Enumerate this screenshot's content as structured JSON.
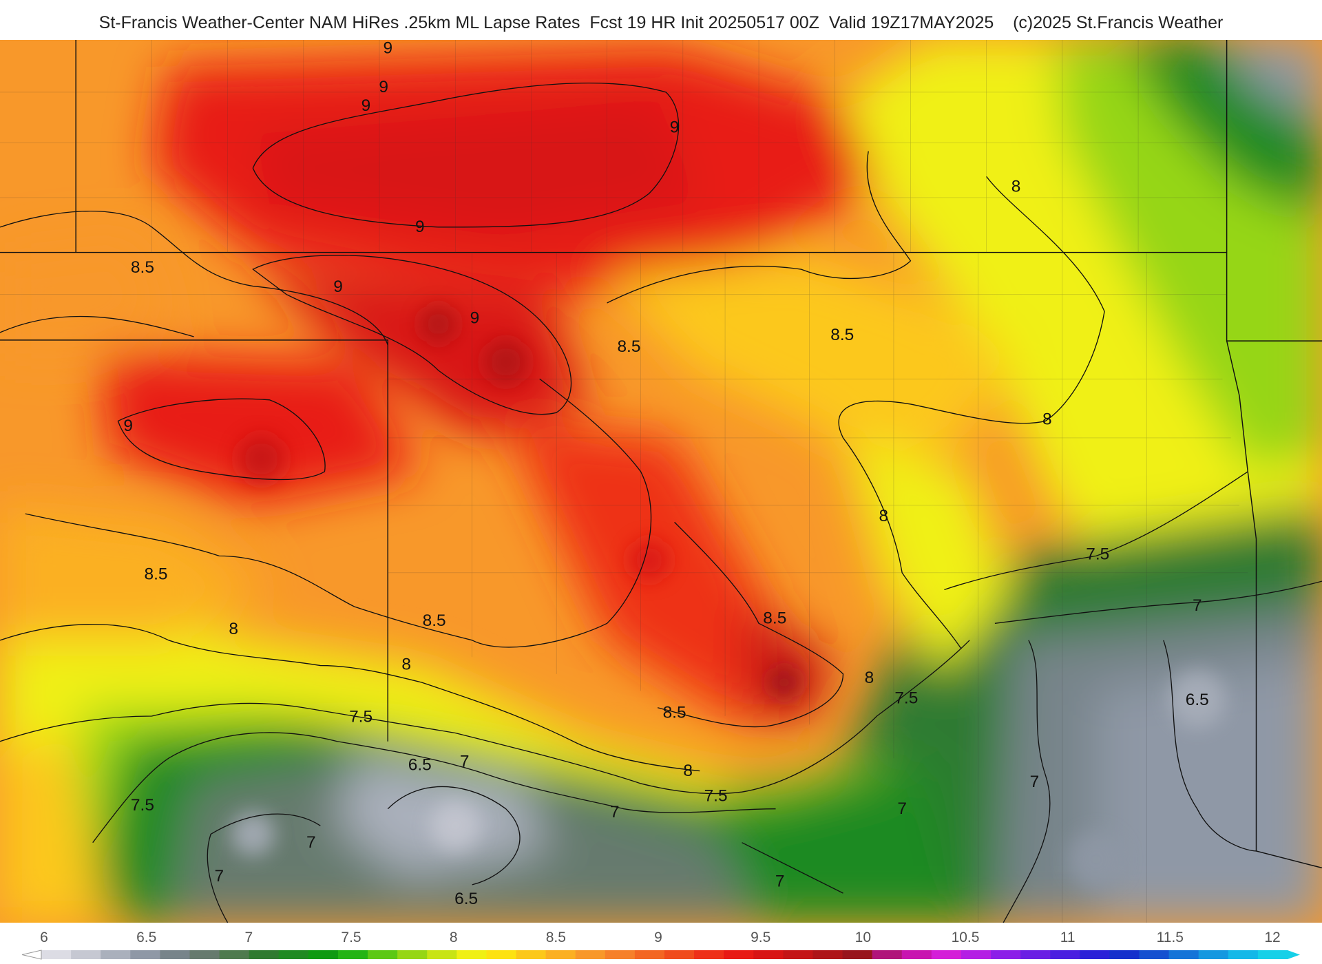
{
  "title": "St-Francis Weather-Center NAM HiRes .25km ML Lapse Rates  Fcst 19 HR Init 20250517 00Z  Valid 19Z17MAY2025    (c)2025 St.Francis Weather",
  "colorbar": {
    "ticks": [
      "6",
      "6.5",
      "7",
      "7.5",
      "8",
      "8.5",
      "9",
      "9.5",
      "10",
      "10.5",
      "11",
      "11.5",
      "12"
    ],
    "colors": [
      "#dcdce4",
      "#c6c8d2",
      "#aab0bc",
      "#8f98a6",
      "#77848a",
      "#667a6e",
      "#4e7a4e",
      "#2f7a30",
      "#1f8a22",
      "#0f9a12",
      "#24b414",
      "#5cc814",
      "#96d614",
      "#c8e414",
      "#f0f014",
      "#fde212",
      "#fcc81a",
      "#fbb022",
      "#f8982a",
      "#f6802a",
      "#f36622",
      "#f04c1c",
      "#ee3018",
      "#e81a14",
      "#d81414",
      "#c41416",
      "#ae1418",
      "#98141c",
      "#b0147a",
      "#c814b0",
      "#d41ed8",
      "#b41ee4",
      "#8c1ee8",
      "#6a1ee4",
      "#4a1ee0",
      "#2a20d8",
      "#1430cc",
      "#1450d0",
      "#1474d8",
      "#1498e0",
      "#14b8e8",
      "#16d0e8"
    ]
  },
  "contour_labels": [
    {
      "text": "9",
      "lx": 460,
      "ly": 58
    },
    {
      "text": "9",
      "lx": 455,
      "ly": 104
    },
    {
      "text": "9",
      "lx": 434,
      "ly": 126
    },
    {
      "text": "9",
      "lx": 800,
      "ly": 152
    },
    {
      "text": "9",
      "lx": 498,
      "ly": 270
    },
    {
      "text": "9",
      "lx": 401,
      "ly": 341
    },
    {
      "text": "9",
      "lx": 563,
      "ly": 378
    },
    {
      "text": "9",
      "lx": 152,
      "ly": 506
    },
    {
      "text": "8.5",
      "lx": 169,
      "ly": 318
    },
    {
      "text": "8.5",
      "lx": 746,
      "ly": 412
    },
    {
      "text": "8.5",
      "lx": 999,
      "ly": 398
    },
    {
      "text": "8.5",
      "lx": 185,
      "ly": 682
    },
    {
      "text": "8.5",
      "lx": 515,
      "ly": 737
    },
    {
      "text": "8.5",
      "lx": 919,
      "ly": 734
    },
    {
      "text": "8.5",
      "lx": 800,
      "ly": 846
    },
    {
      "text": "8",
      "lx": 1205,
      "ly": 222
    },
    {
      "text": "8",
      "lx": 1242,
      "ly": 498
    },
    {
      "text": "8",
      "lx": 1048,
      "ly": 613
    },
    {
      "text": "8",
      "lx": 277,
      "ly": 747
    },
    {
      "text": "8",
      "lx": 482,
      "ly": 789
    },
    {
      "text": "8",
      "lx": 1031,
      "ly": 805
    },
    {
      "text": "8",
      "lx": 816,
      "ly": 915
    },
    {
      "text": "7.5",
      "lx": 1302,
      "ly": 658
    },
    {
      "text": "7.5",
      "lx": 428,
      "ly": 851
    },
    {
      "text": "7.5",
      "lx": 1075,
      "ly": 829
    },
    {
      "text": "7.5",
      "lx": 849,
      "ly": 945
    },
    {
      "text": "7.5",
      "lx": 169,
      "ly": 956
    },
    {
      "text": "7",
      "lx": 1420,
      "ly": 719
    },
    {
      "text": "7",
      "lx": 551,
      "ly": 904
    },
    {
      "text": "7",
      "lx": 729,
      "ly": 964
    },
    {
      "text": "7",
      "lx": 369,
      "ly": 1000
    },
    {
      "text": "7",
      "lx": 260,
      "ly": 1040
    },
    {
      "text": "7",
      "lx": 1227,
      "ly": 928
    },
    {
      "text": "7",
      "lx": 1070,
      "ly": 960
    },
    {
      "text": "7",
      "lx": 925,
      "ly": 1046
    },
    {
      "text": "6.5",
      "lx": 1420,
      "ly": 831
    },
    {
      "text": "6.5",
      "lx": 498,
      "ly": 908
    },
    {
      "text": "6.5",
      "lx": 553,
      "ly": 1067
    }
  ]
}
